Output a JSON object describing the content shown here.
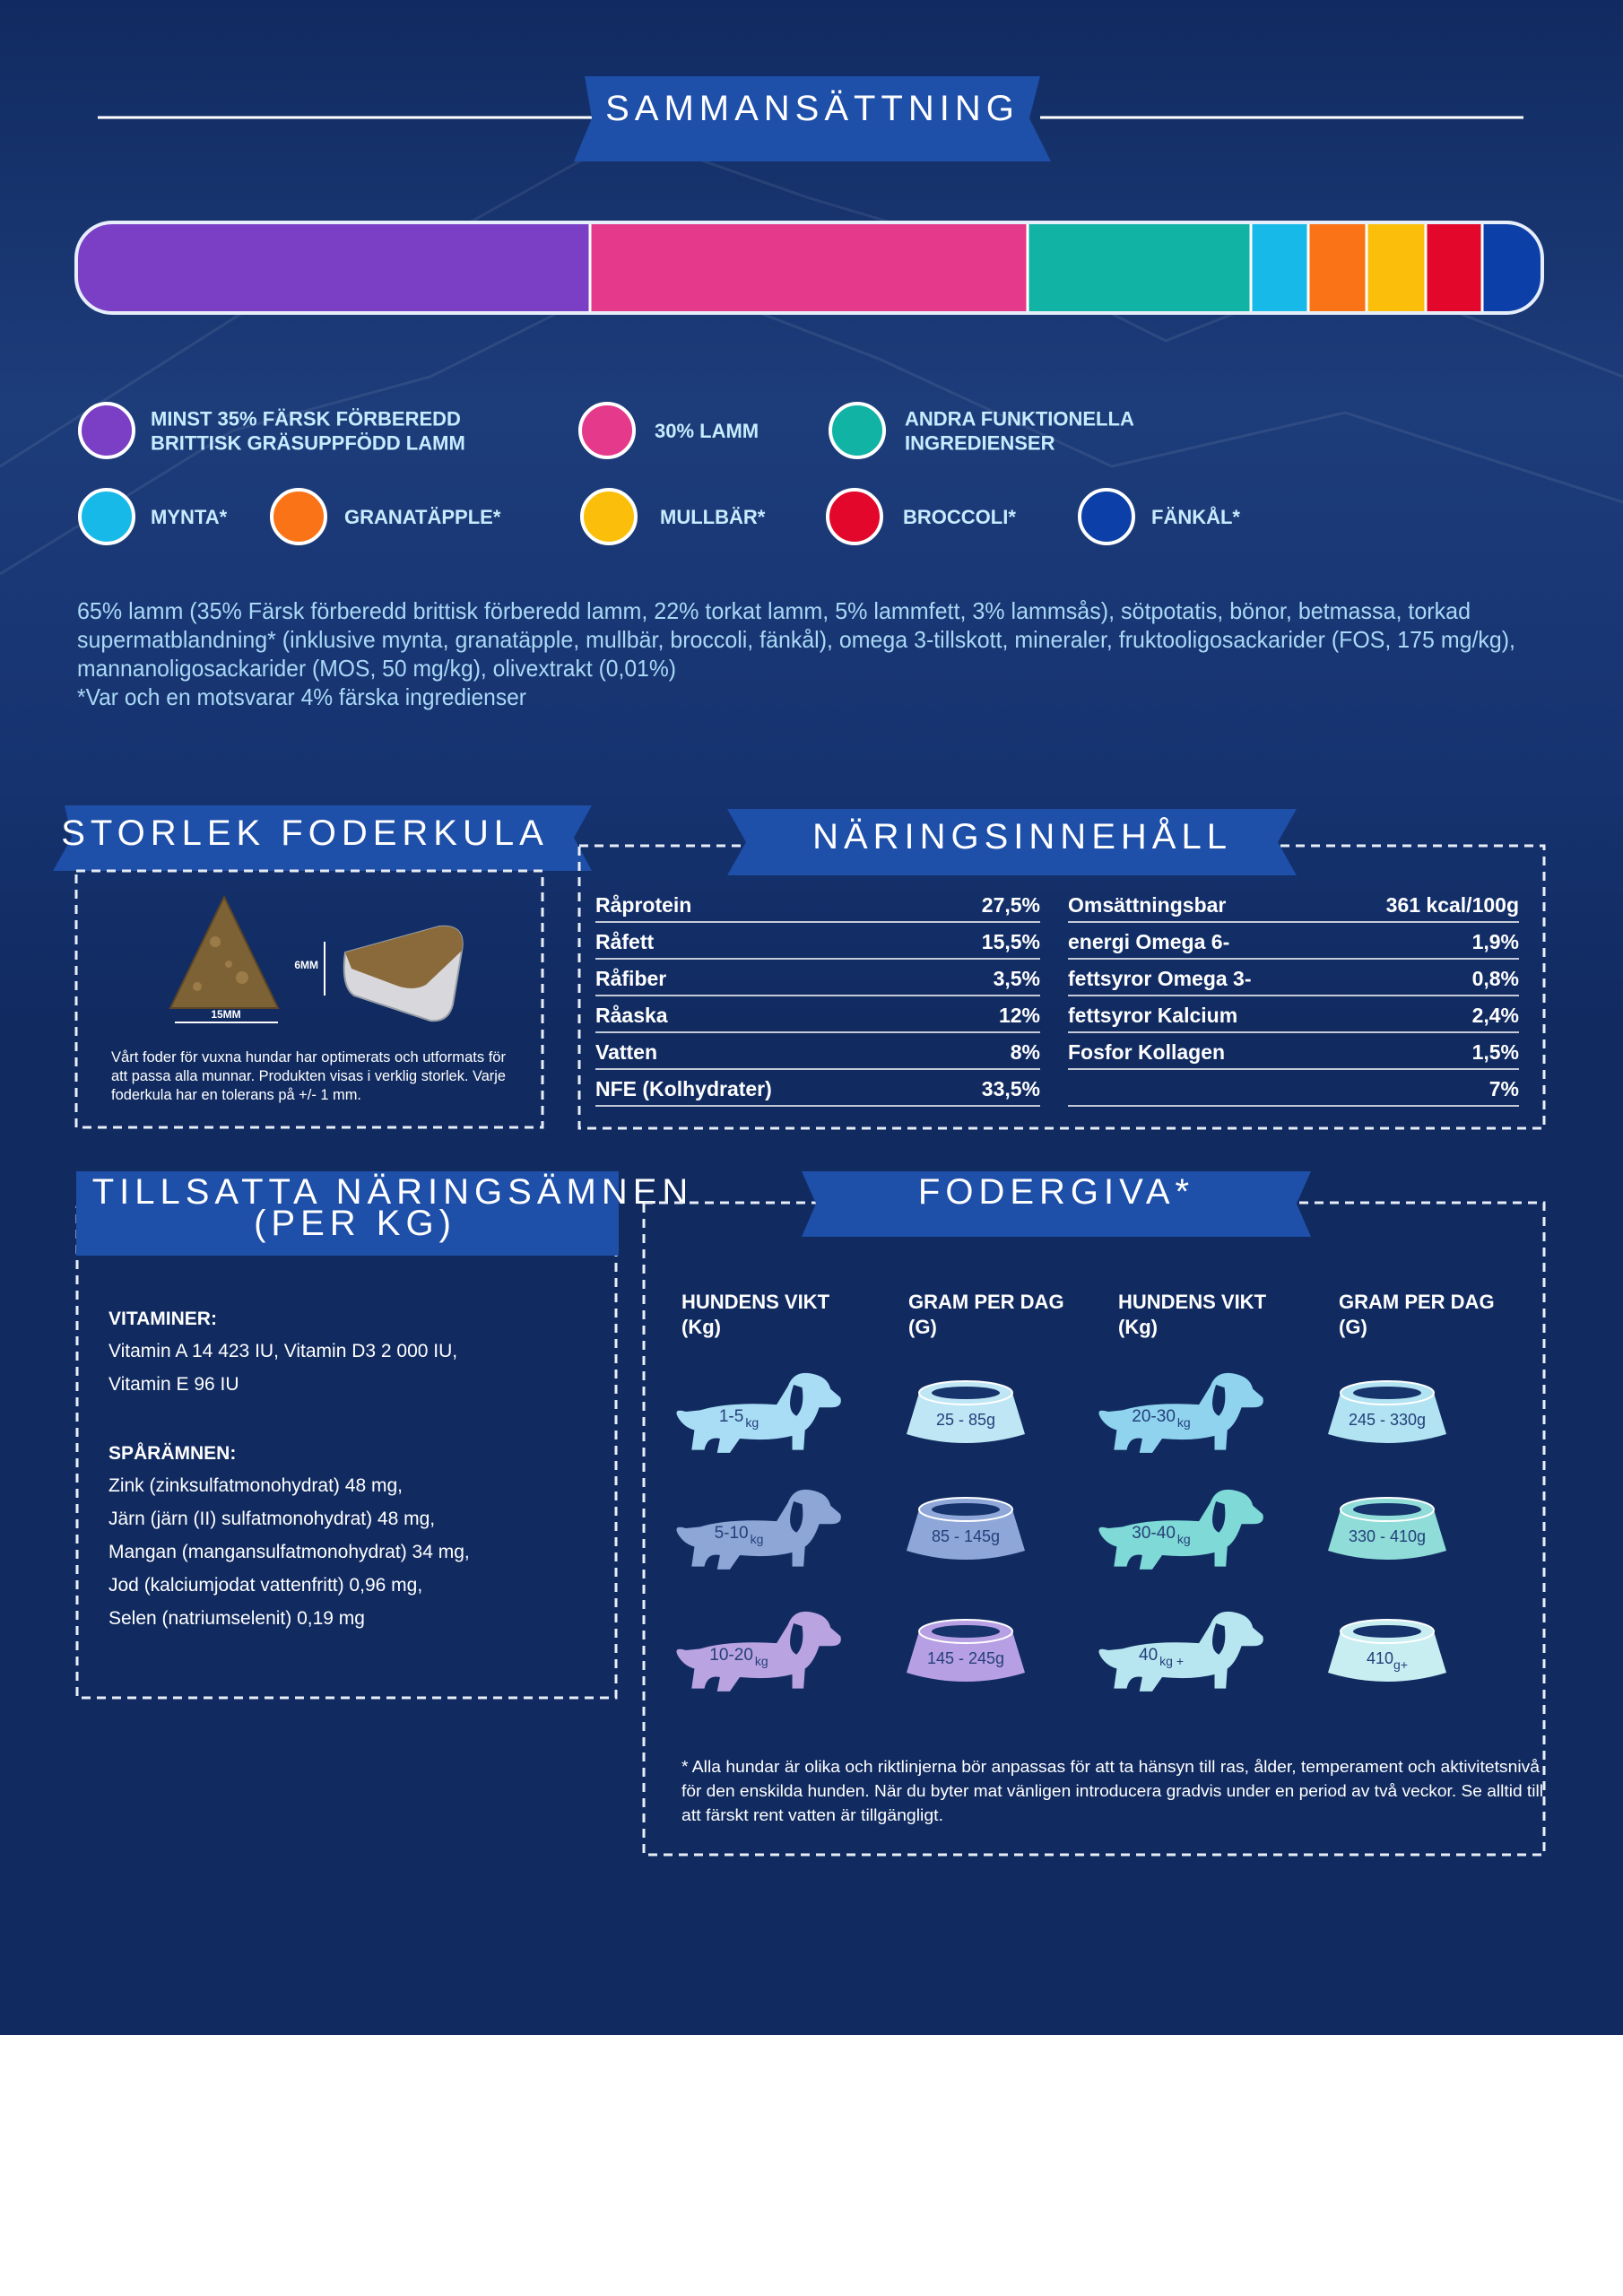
{
  "composition": {
    "title": "SAMMANSÄTTNING",
    "legend": [
      {
        "lines": [
          "MINST 35% FÄRSK FÖRBEREDD",
          "BRITTISK GRÄSUPPFÖDD LAMM"
        ],
        "color": "#7b3fc5"
      },
      {
        "lines": [
          "30% LAMM"
        ],
        "color": "#e53a8c"
      },
      {
        "lines": [
          "ANDRA FUNKTIONELLA",
          "INGREDIENSER"
        ],
        "color": "#11b3a5"
      },
      {
        "lines": [
          "MYNTA*"
        ],
        "color": "#17b9e8"
      },
      {
        "lines": [
          "GRANATÄPPLE*"
        ],
        "color": "#fa7317"
      },
      {
        "lines": [
          "MULLBÄR*"
        ],
        "color": "#fbbf0b"
      },
      {
        "lines": [
          "BROCCOLI*"
        ],
        "color": "#e3082b"
      },
      {
        "lines": [
          "FÄNKÅL*"
        ],
        "color": "#0c40a8"
      }
    ],
    "ingredients": [
      "65% lamm (35% Färsk förberedd brittisk förberedd lamm, 22% torkat lamm, 5% lammfett, 3% lammsås), sötpotatis, bönor, betmassa, torkad",
      "supermatblandning* (inklusive mynta, granatäpple, mullbär, broccoli, fänkål), omega 3-tillskott, mineraler, fruktooligosackarider (FOS, 175 mg/kg),",
      "mannanoligosackarider (MOS, 50 mg/kg), olivextrakt (0,01%)",
      "*Var och en motsvarar 4% färska ingredienser"
    ]
  },
  "kibble": {
    "title": "STORLEK FODERKULA",
    "width_label": "15MM",
    "height_label": "6MM",
    "text": [
      "Vårt foder för vuxna hundar har optimerats och utformats för",
      "att passa alla munnar. Produkten visas i verklig storlek. Varje",
      "foderkula har en tolerans på +/- 1 mm."
    ]
  },
  "nutrition": {
    "title": "NÄRINGSINNEHÅLL",
    "left": [
      {
        "label": "Råprotein",
        "value": "27,5%"
      },
      {
        "label": "Råfett",
        "value": "15,5%"
      },
      {
        "label": "Råfiber",
        "value": "3,5%"
      },
      {
        "label": "Råaska",
        "value": "12%"
      },
      {
        "label": "Vatten",
        "value": "8%"
      },
      {
        "label": "NFE (Kolhydrater)",
        "value": "33,5%"
      }
    ],
    "right": [
      {
        "label": "Omsättningsbar",
        "value": "361 kcal/100g"
      },
      {
        "label": "energi      Omega      6-",
        "value": "1,9%"
      },
      {
        "label": "fettsyror   Omega   3-",
        "value": "0,8%"
      },
      {
        "label": "fettsyror       Kalcium",
        "value": "2,4%"
      },
      {
        "label": "Fosfor Kollagen",
        "value": "1,5%"
      },
      {
        "value": "7%"
      }
    ]
  },
  "supplements": {
    "title": "TILLSATTA NÄRINGSÄMNEN",
    "subtitle": "(PER KG)",
    "vitamins": {
      "heading": "VITAMINER:",
      "lines": [
        "Vitamin A 14 423 IU, Vitamin D3 2 000 IU,",
        "Vitamin E 96 IU"
      ]
    },
    "trace": {
      "heading": "SPÅRÄMNEN:",
      "lines": [
        "Zink (zinksulfatmonohydrat) 48 mg,",
        "Järn (järn (II) sulfatmonohydrat) 48 mg,",
        "Mangan (mangansulfatmonohydrat) 34 mg,",
        "Jod (kalciumjodat vattenfritt) 0,96 mg,",
        "Selen (natriumselenit) 0,19 mg"
      ]
    }
  },
  "feeding": {
    "title": "FODERGIVA*",
    "headers": [
      [
        "HUNDENS VIKT",
        "(Kg)"
      ],
      [
        "GRAM PER DAG",
        "(G)"
      ],
      [
        "HUNDENS VIKT",
        "(Kg)"
      ],
      [
        "GRAM PER DAG",
        "(G)"
      ]
    ],
    "rows": [
      {
        "weight": "1-5",
        "unit": "kg",
        "grams": "25 - 85g",
        "dog_color": "#a9dcf5",
        "bowl_color": "#bfe6f5"
      },
      {
        "weight": "5-10",
        "unit": "kg",
        "grams": "85 - 145g",
        "dog_color": "#8ea6d6",
        "bowl_color": "#8ea7d8"
      },
      {
        "weight": "10-20",
        "unit": "kg",
        "grams": "145 - 245g",
        "dog_color": "#b9a3e0",
        "bowl_color": "#b79fe3"
      },
      {
        "weight": "20-30",
        "unit": "kg",
        "grams": "245 - 330g",
        "dog_color": "#8fd3ef",
        "bowl_color": "#b2e3f3"
      },
      {
        "weight": "30-40",
        "unit": "kg",
        "grams": "330 - 410g",
        "dog_color": "#7fd9d6",
        "bowl_color": "#8fdcd8"
      },
      {
        "weight": "40",
        "unit": "kg +",
        "grams": "410",
        "grams_unit": "g+",
        "dog_color": "#b8e6f0",
        "bowl_color": "#c9eef2"
      }
    ],
    "footnote": [
      "* Alla hundar är olika och riktlinjerna bör anpassas för att ta hänsyn till ras, ålder, temperament och aktivitetsnivå",
      "för den enskilda hunden. När du byter mat vänligen introducera gradvis under en period av två veckor. Se alltid till",
      "att färskt rent vatten är tillgängligt."
    ]
  }
}
